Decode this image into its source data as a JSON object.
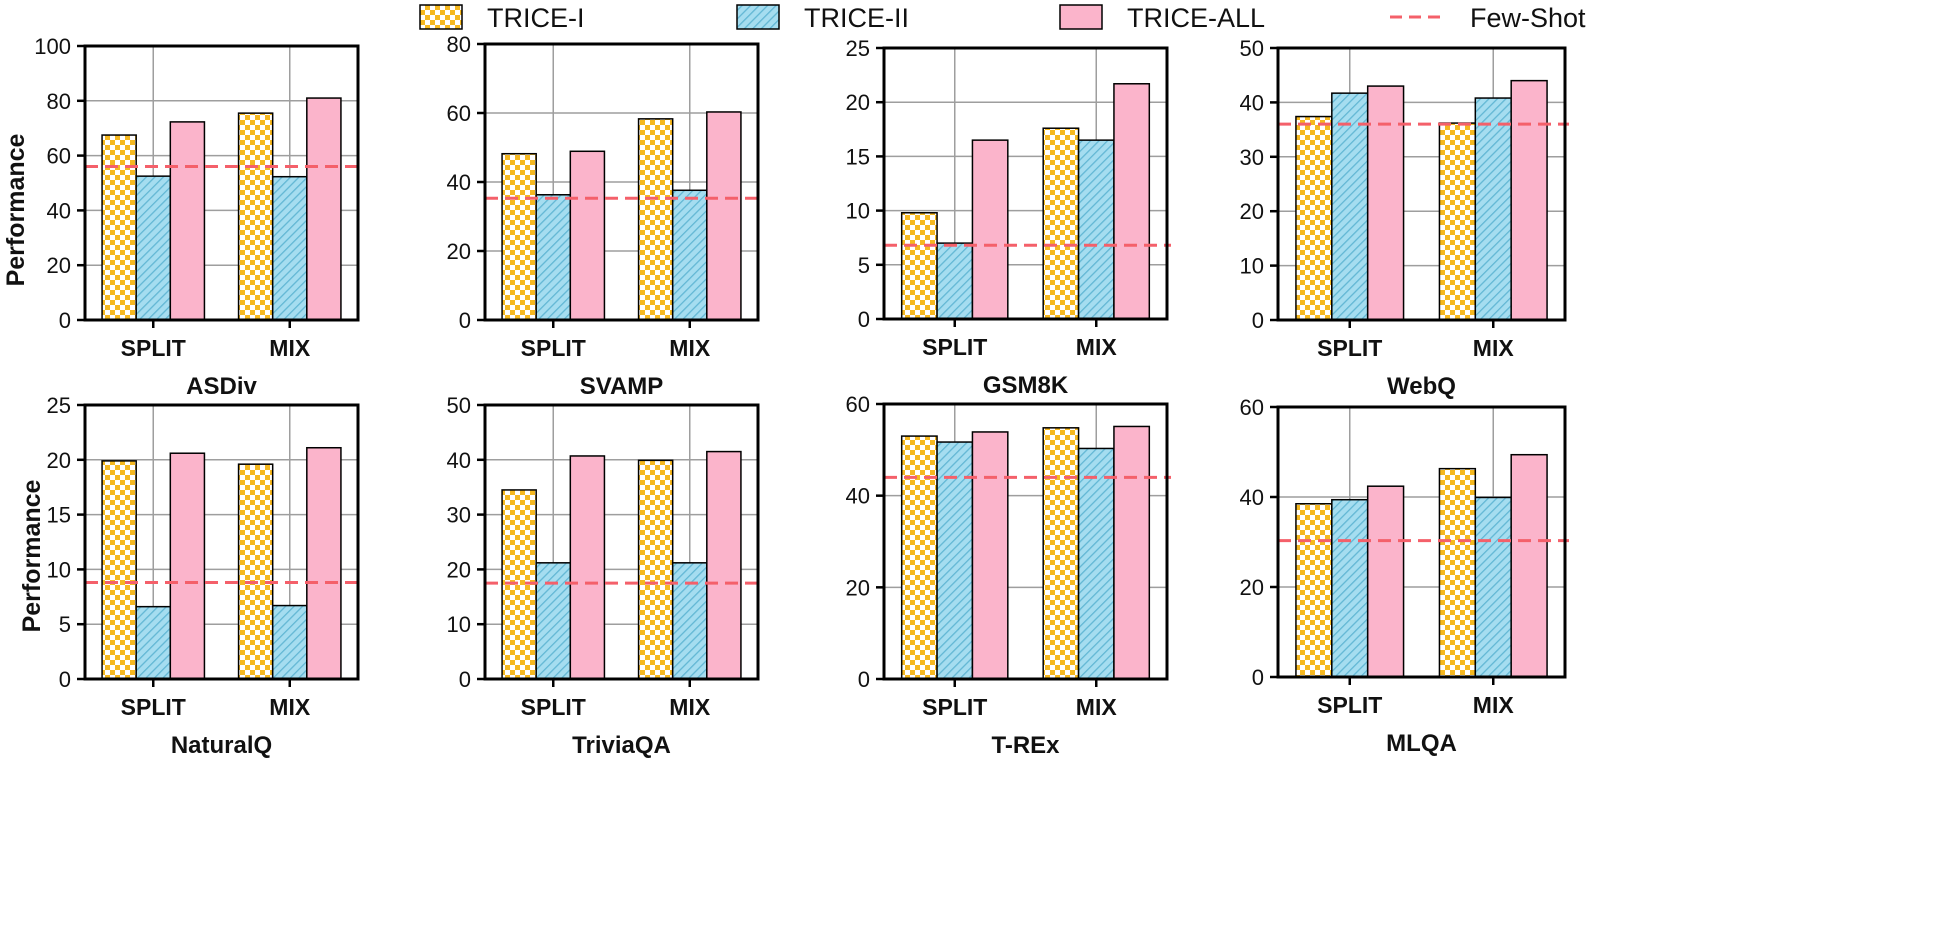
{
  "colors": {
    "trice1_fill": "#f5b820",
    "trice2_fill": "#a5ddf0",
    "trice2_stripe": "#62b7d4",
    "triceall_fill": "#fbb4cb",
    "fewshot": "#f4606a",
    "grid": "#9e9e9e",
    "axis": "#000000"
  },
  "legend": {
    "trice1": "TRICE-I",
    "trice2": "TRICE-II",
    "triceall": "TRICE-ALL",
    "fewshot": "Few-Shot"
  },
  "ylabel": "Performance",
  "chart_data": [
    {
      "type": "bar",
      "title": "ASDiv",
      "categories": [
        "SPLIT",
        "MIX"
      ],
      "ylim": [
        0,
        100
      ],
      "yticks": [
        0,
        20,
        40,
        60,
        80,
        100
      ],
      "series": [
        {
          "name": "TRICE-I",
          "values": [
            67.5,
            75.5
          ]
        },
        {
          "name": "TRICE-II",
          "values": [
            52.5,
            52.3
          ]
        },
        {
          "name": "TRICE-ALL",
          "values": [
            72.3,
            81.0
          ]
        }
      ],
      "fewshot": 56.0
    },
    {
      "type": "bar",
      "title": "SVAMP",
      "categories": [
        "SPLIT",
        "MIX"
      ],
      "ylim": [
        0,
        80
      ],
      "yticks": [
        0,
        20,
        40,
        60,
        80
      ],
      "series": [
        {
          "name": "TRICE-I",
          "values": [
            48.2,
            58.3
          ]
        },
        {
          "name": "TRICE-II",
          "values": [
            36.3,
            37.6
          ]
        },
        {
          "name": "TRICE-ALL",
          "values": [
            48.9,
            60.3
          ]
        }
      ],
      "fewshot": 35.3
    },
    {
      "type": "bar",
      "title": "GSM8K",
      "categories": [
        "SPLIT",
        "MIX"
      ],
      "ylim": [
        0,
        25
      ],
      "yticks": [
        0,
        5,
        10,
        15,
        20,
        25
      ],
      "series": [
        {
          "name": "TRICE-I",
          "values": [
            9.8,
            17.6
          ]
        },
        {
          "name": "TRICE-II",
          "values": [
            7.0,
            16.5
          ]
        },
        {
          "name": "TRICE-ALL",
          "values": [
            16.5,
            21.7
          ]
        }
      ],
      "fewshot": 6.8
    },
    {
      "type": "bar",
      "title": "WebQ",
      "categories": [
        "SPLIT",
        "MIX"
      ],
      "ylim": [
        0,
        50
      ],
      "yticks": [
        0,
        10,
        20,
        30,
        40,
        50
      ],
      "series": [
        {
          "name": "TRICE-I",
          "values": [
            37.4,
            36.2
          ]
        },
        {
          "name": "TRICE-II",
          "values": [
            41.7,
            40.8
          ]
        },
        {
          "name": "TRICE-ALL",
          "values": [
            43.0,
            44.0
          ]
        }
      ],
      "fewshot": 36.0
    },
    {
      "type": "bar",
      "title": "NaturalQ",
      "categories": [
        "SPLIT",
        "MIX"
      ],
      "ylim": [
        0,
        25
      ],
      "yticks": [
        0,
        5,
        10,
        15,
        20,
        25
      ],
      "series": [
        {
          "name": "TRICE-I",
          "values": [
            19.9,
            19.6
          ]
        },
        {
          "name": "TRICE-II",
          "values": [
            6.6,
            6.7
          ]
        },
        {
          "name": "TRICE-ALL",
          "values": [
            20.6,
            21.1
          ]
        }
      ],
      "fewshot": 8.8
    },
    {
      "type": "bar",
      "title": "TriviaQA",
      "categories": [
        "SPLIT",
        "MIX"
      ],
      "ylim": [
        0,
        50
      ],
      "yticks": [
        0,
        10,
        20,
        30,
        40,
        50
      ],
      "series": [
        {
          "name": "TRICE-I",
          "values": [
            34.5,
            39.9
          ]
        },
        {
          "name": "TRICE-II",
          "values": [
            21.2,
            21.2
          ]
        },
        {
          "name": "TRICE-ALL",
          "values": [
            40.7,
            41.5
          ]
        }
      ],
      "fewshot": 17.5
    },
    {
      "type": "bar",
      "title": "T-REx",
      "categories": [
        "SPLIT",
        "MIX"
      ],
      "ylim": [
        0,
        60
      ],
      "yticks": [
        0,
        20,
        40,
        60
      ],
      "series": [
        {
          "name": "TRICE-I",
          "values": [
            53.0,
            54.8
          ]
        },
        {
          "name": "TRICE-II",
          "values": [
            51.7,
            50.3
          ]
        },
        {
          "name": "TRICE-ALL",
          "values": [
            53.9,
            55.1
          ]
        }
      ],
      "fewshot": 44.0
    },
    {
      "type": "bar",
      "title": "MLQA",
      "categories": [
        "SPLIT",
        "MIX"
      ],
      "ylim": [
        0,
        60
      ],
      "yticks": [
        0,
        20,
        40,
        60
      ],
      "series": [
        {
          "name": "TRICE-I",
          "values": [
            38.5,
            46.3
          ]
        },
        {
          "name": "TRICE-II",
          "values": [
            39.4,
            39.9
          ]
        },
        {
          "name": "TRICE-ALL",
          "values": [
            42.4,
            49.4
          ]
        }
      ],
      "fewshot": 30.3
    }
  ]
}
